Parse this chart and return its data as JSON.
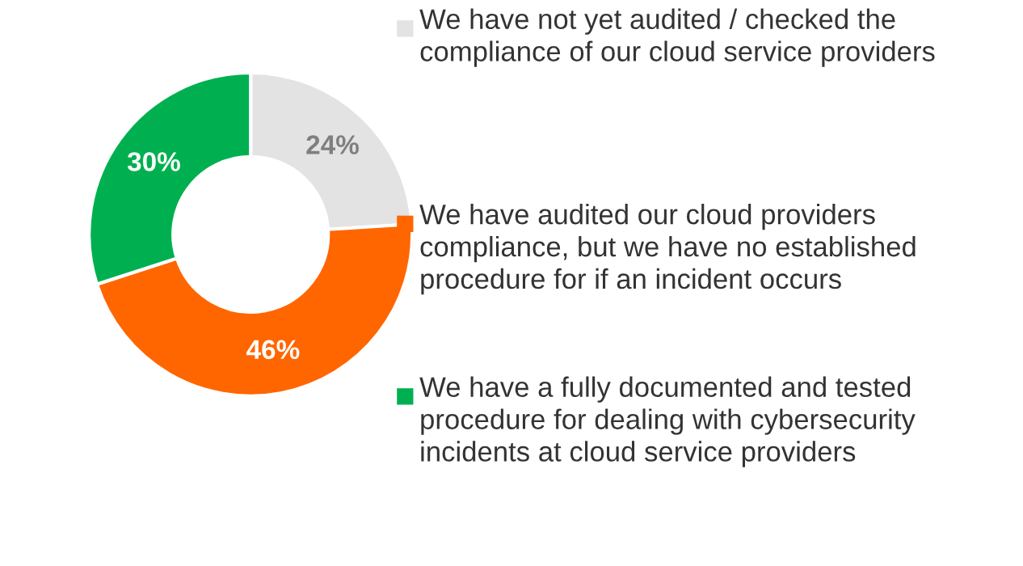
{
  "chart_data": {
    "type": "donut",
    "categories": [
      "We have not yet audited / checked the compliance of our cloud service providers",
      "We have audited our cloud providers compliance, but we have no established procedure for if an incident occurs",
      "We have a fully documented and tested procedure for dealing with cybersecurity incidents at cloud service providers"
    ],
    "values": [
      24,
      46,
      30
    ],
    "colors": [
      "#e3e3e3",
      "#ff6600",
      "#00b050"
    ],
    "value_labels": [
      "24%",
      "46%",
      "30%"
    ],
    "legend": "right"
  }
}
